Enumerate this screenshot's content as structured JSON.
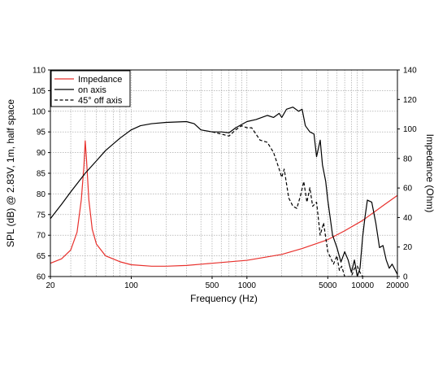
{
  "chart_data": {
    "type": "line",
    "xlabel": "Frequency (Hz)",
    "ylabel_left": "SPL (dB) @ 2.83V, 1m, half space",
    "ylabel_right": "Impedance (Ohm)",
    "x_scale": "log",
    "xlim": [
      20,
      20000
    ],
    "ylim_left": [
      60,
      110
    ],
    "ylim_right": [
      0,
      140
    ],
    "x_ticks": [
      {
        "value": 20,
        "label": "20"
      },
      {
        "value": 100,
        "label": "100"
      },
      {
        "value": 500,
        "label": "500"
      },
      {
        "value": 1000,
        "label": "1000"
      },
      {
        "value": 5000,
        "label": "5000"
      },
      {
        "value": 10000,
        "label": "10000"
      },
      {
        "value": 20000,
        "label": "20000"
      }
    ],
    "y_left_ticks": [
      "60",
      "65",
      "70",
      "75",
      "80",
      "85",
      "90",
      "95",
      "100",
      "105",
      "110"
    ],
    "y_right_ticks": [
      "0",
      "20",
      "40",
      "60",
      "80",
      "100",
      "120",
      "140"
    ],
    "grid": true,
    "legend_position": "top-left",
    "series": [
      {
        "name": "Impedance",
        "axis": "right",
        "color": "#e8302c",
        "dash": "solid",
        "x": [
          20,
          25,
          30,
          34,
          37,
          39,
          40,
          41,
          43,
          46,
          50,
          60,
          80,
          100,
          150,
          200,
          300,
          500,
          1000,
          2000,
          3000,
          5000,
          7000,
          10000,
          15000,
          20000
        ],
        "y": [
          9,
          12,
          18,
          30,
          52,
          75,
          92,
          80,
          52,
          32,
          22,
          14,
          10,
          8,
          7,
          7,
          7.5,
          9,
          11,
          15,
          19,
          25,
          31,
          38,
          48,
          55
        ]
      },
      {
        "name": "on axis",
        "axis": "left",
        "color": "#000000",
        "dash": "solid",
        "x": [
          20,
          25,
          30,
          40,
          50,
          60,
          80,
          100,
          120,
          150,
          200,
          300,
          350,
          400,
          500,
          600,
          700,
          800,
          1000,
          1200,
          1500,
          1700,
          1900,
          2000,
          2200,
          2500,
          2800,
          3000,
          3200,
          3500,
          3800,
          4000,
          4300,
          4500,
          4800,
          5000,
          5500,
          6000,
          6500,
          7000,
          7500,
          8000,
          8500,
          9000,
          9500,
          10000,
          10500,
          11000,
          12000,
          13000,
          14000,
          15000,
          16000,
          17000,
          18000,
          20000
        ],
        "y": [
          74,
          77.5,
          80.5,
          85,
          88,
          90.5,
          93.5,
          95.5,
          96.5,
          97,
          97.3,
          97.5,
          97,
          95.5,
          95,
          95,
          94.8,
          96,
          97.5,
          98,
          99,
          98.5,
          99.5,
          98.5,
          100.5,
          101,
          100,
          100.5,
          96.5,
          95,
          94.5,
          89,
          93,
          87,
          83,
          78.5,
          70,
          67,
          63.5,
          66,
          64,
          61,
          64,
          60,
          62,
          69.5,
          74.5,
          78.5,
          78,
          73,
          67,
          67.5,
          64,
          62,
          63,
          60.5
        ]
      },
      {
        "name": "45° off axis",
        "axis": "left",
        "color": "#000000",
        "dash": "dashed",
        "x": [
          500,
          600,
          700,
          800,
          900,
          1000,
          1100,
          1300,
          1500,
          1700,
          1900,
          2000,
          2100,
          2300,
          2500,
          2700,
          2900,
          3100,
          3300,
          3500,
          3700,
          4000,
          4300,
          4600,
          5000,
          5300,
          5600,
          6000,
          6300,
          6600,
          7000,
          8000,
          8500,
          9000,
          9500,
          10000,
          10500
        ],
        "y": [
          95,
          94.5,
          94,
          95.5,
          96.5,
          96,
          96,
          93,
          92.5,
          90,
          86,
          84,
          86,
          79,
          77,
          76.5,
          79.5,
          83,
          78,
          81.5,
          77,
          78,
          70,
          73,
          66,
          64.5,
          63,
          65,
          61.5,
          62.5,
          60,
          60,
          62,
          62.5,
          61,
          60,
          60
        ]
      }
    ]
  }
}
